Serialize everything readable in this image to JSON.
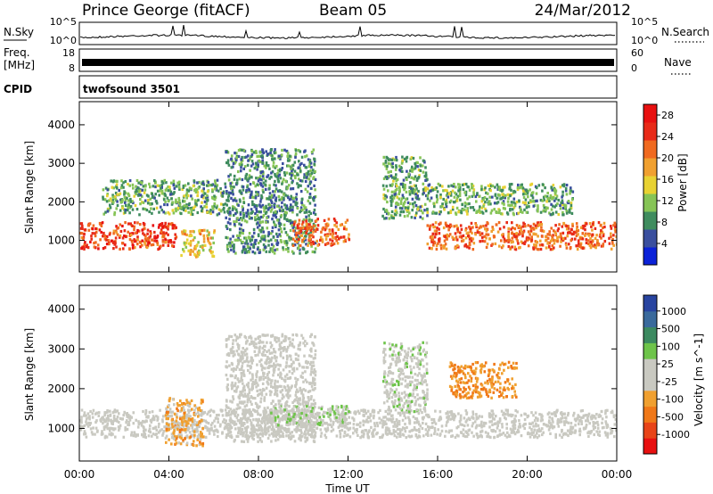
{
  "header": {
    "station": "Prince George (fitACF)",
    "beam": "Beam 05",
    "date": "24/Mar/2012"
  },
  "panels": {
    "nsky": {
      "label": "N.Sky",
      "tick_top": "10^5",
      "tick_bottom": "10^0",
      "right_label": "N.Search",
      "right_tick_top": "10^5",
      "right_tick_bottom": "10^0"
    },
    "freq": {
      "label_top": "Freq.",
      "label_bottom": "[MHz]",
      "tick_top": "18",
      "tick_bottom": "8",
      "right_label": "Nave",
      "right_tick_top": "60",
      "right_tick_bottom": "0"
    },
    "cpid": {
      "label": "CPID",
      "program": "twofsound 3501"
    }
  },
  "colorbars": {
    "power": {
      "title": "Power [dB]",
      "ticks": [
        "4",
        "8",
        "12",
        "16",
        "20",
        "24",
        "28"
      ],
      "colors": [
        "#0b22d8",
        "#3a4f9e",
        "#3f8c5e",
        "#86c456",
        "#e8d233",
        "#f0a030",
        "#f06a20",
        "#e82a18",
        "#e81010"
      ]
    },
    "velocity": {
      "title": "Velocity [m s^-1]",
      "ticks": [
        "1000",
        "500",
        "100",
        "25",
        "-25",
        "-100",
        "-500",
        "-1000"
      ],
      "colors": [
        "#2844a0",
        "#3a6a9c",
        "#3c8a60",
        "#6ec44a",
        "#c9c9c1",
        "#c9c9c1",
        "#f0a030",
        "#f07818",
        "#e84418",
        "#e81010"
      ]
    }
  },
  "axes": {
    "x_ticks": [
      "00:00",
      "04:00",
      "08:00",
      "12:00",
      "16:00",
      "20:00",
      "00:00"
    ],
    "x_label": "Time UT",
    "y_label": "Slant Range [km]",
    "y_ticks": [
      "1000",
      "2000",
      "3000",
      "4000"
    ]
  },
  "chart_data": [
    {
      "type": "heatmap",
      "title": "",
      "quantity": "Power",
      "units": "dB",
      "xlabel": "Time UT",
      "ylabel": "Slant Range [km]",
      "xlim_hours": [
        0,
        24
      ],
      "ylim_km": [
        180,
        4600
      ],
      "color_range": [
        0,
        30
      ],
      "features": [
        {
          "t_start": 0.0,
          "t_end": 4.3,
          "range_km": [
            800,
            1500
          ],
          "value_db": 24
        },
        {
          "t_start": 1.0,
          "t_end": 6.5,
          "range_km": [
            1700,
            2600
          ],
          "value_db": 10
        },
        {
          "t_start": 4.5,
          "t_end": 6.0,
          "range_km": [
            600,
            1300
          ],
          "value_db": 16
        },
        {
          "t_start": 6.5,
          "t_end": 10.5,
          "range_km": [
            700,
            3400
          ],
          "value_db": 8
        },
        {
          "t_start": 9.5,
          "t_end": 12.0,
          "range_km": [
            900,
            1600
          ],
          "value_db": 22
        },
        {
          "t_start": 13.5,
          "t_end": 15.5,
          "range_km": [
            1600,
            3200
          ],
          "value_db": 10
        },
        {
          "t_start": 15.5,
          "t_end": 24.0,
          "range_km": [
            800,
            1500
          ],
          "value_db": 22
        },
        {
          "t_start": 15.5,
          "t_end": 22.0,
          "range_km": [
            1700,
            2500
          ],
          "value_db": 10
        }
      ]
    },
    {
      "type": "heatmap",
      "title": "",
      "quantity": "Velocity",
      "units": "m s^-1",
      "xlabel": "Time UT",
      "ylabel": "Slant Range [km]",
      "xlim_hours": [
        0,
        24
      ],
      "ylim_km": [
        180,
        4600
      ],
      "color_range": [
        -1000,
        1000
      ],
      "features": [
        {
          "t_start": 0.0,
          "t_end": 24.0,
          "range_km": [
            800,
            1500
          ],
          "value_ms": 0
        },
        {
          "t_start": 3.8,
          "t_end": 5.5,
          "range_km": [
            600,
            1800
          ],
          "value_ms": -300
        },
        {
          "t_start": 6.5,
          "t_end": 10.5,
          "range_km": [
            700,
            3400
          ],
          "value_ms": 0
        },
        {
          "t_start": 8.5,
          "t_end": 12.0,
          "range_km": [
            1100,
            1600
          ],
          "value_ms": 150
        },
        {
          "t_start": 13.5,
          "t_end": 15.5,
          "range_km": [
            1400,
            3200
          ],
          "value_ms": 100
        },
        {
          "t_start": 16.5,
          "t_end": 19.5,
          "range_km": [
            1800,
            2700
          ],
          "value_ms": -400
        }
      ]
    }
  ]
}
